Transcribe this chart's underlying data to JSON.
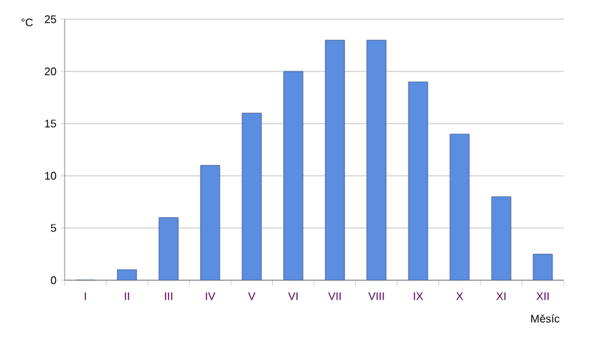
{
  "chart_data": {
    "type": "bar",
    "xlabel": "Měsíc",
    "ylabel": "°C",
    "categories": [
      "I",
      "II",
      "III",
      "IV",
      "V",
      "VI",
      "VII",
      "VIII",
      "IX",
      "X",
      "XI",
      "XII"
    ],
    "values": [
      0,
      1,
      6,
      11,
      16,
      20,
      23,
      23,
      19,
      14,
      8,
      2.5
    ],
    "color": "#5b8de0",
    "ylim": [
      0,
      25
    ],
    "yticks": [
      0,
      5,
      10,
      15,
      20,
      25
    ],
    "grid": "y"
  }
}
